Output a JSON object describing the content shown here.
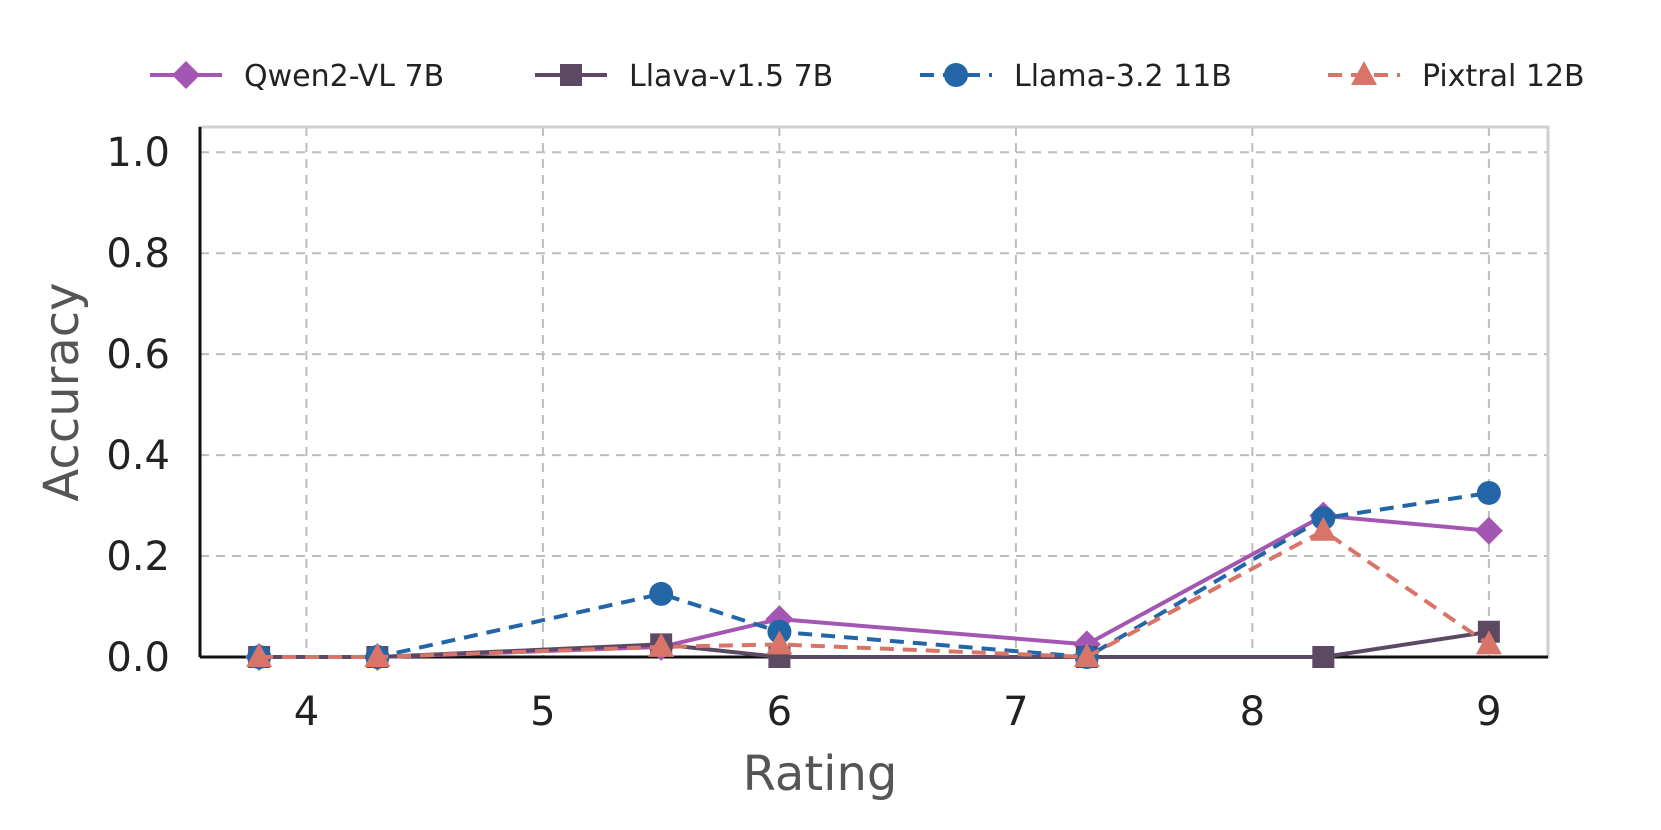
{
  "chart_data": {
    "type": "line",
    "title": "",
    "xlabel": "Rating",
    "ylabel": "Accuracy",
    "xlim": [
      3.55,
      9.25
    ],
    "ylim": [
      0.0,
      1.05
    ],
    "xticks": [
      4,
      5,
      6,
      7,
      8,
      9
    ],
    "yticks": [
      0.0,
      0.2,
      0.4,
      0.6,
      0.8,
      1.0
    ],
    "grid": true,
    "legend_position": "top",
    "series": [
      {
        "name": "Qwen2-VL 7B",
        "color": "#a457b2",
        "marker": "diamond",
        "dashed": false,
        "points": [
          [
            3.8,
            0.0
          ],
          [
            4.3,
            0.0
          ],
          [
            5.5,
            0.02
          ],
          [
            6.0,
            0.075
          ],
          [
            7.3,
            0.025
          ],
          [
            8.3,
            0.28
          ],
          [
            9.0,
            0.25
          ]
        ]
      },
      {
        "name": "Llava-v1.5 7B",
        "color": "#5c4a64",
        "marker": "square",
        "dashed": false,
        "points": [
          [
            3.8,
            0.0
          ],
          [
            4.3,
            0.0
          ],
          [
            5.5,
            0.025
          ],
          [
            6.0,
            0.0
          ],
          [
            7.3,
            0.0
          ],
          [
            8.3,
            0.0
          ],
          [
            9.0,
            0.05
          ]
        ]
      },
      {
        "name": "Llama-3.2 11B",
        "color": "#2366a8",
        "marker": "circle",
        "dashed": true,
        "points": [
          [
            3.8,
            0.0
          ],
          [
            4.3,
            0.0
          ],
          [
            5.5,
            0.125
          ],
          [
            6.0,
            0.05
          ],
          [
            7.3,
            0.0
          ],
          [
            8.3,
            0.275
          ],
          [
            9.0,
            0.325
          ]
        ]
      },
      {
        "name": "Pixtral 12B",
        "color": "#d97568",
        "marker": "triangle",
        "dashed": true,
        "points": [
          [
            3.8,
            0.0
          ],
          [
            4.3,
            0.0
          ],
          [
            5.5,
            0.02
          ],
          [
            6.0,
            0.025
          ],
          [
            7.3,
            0.0
          ],
          [
            8.3,
            0.25
          ],
          [
            9.0,
            0.025
          ]
        ]
      }
    ]
  }
}
